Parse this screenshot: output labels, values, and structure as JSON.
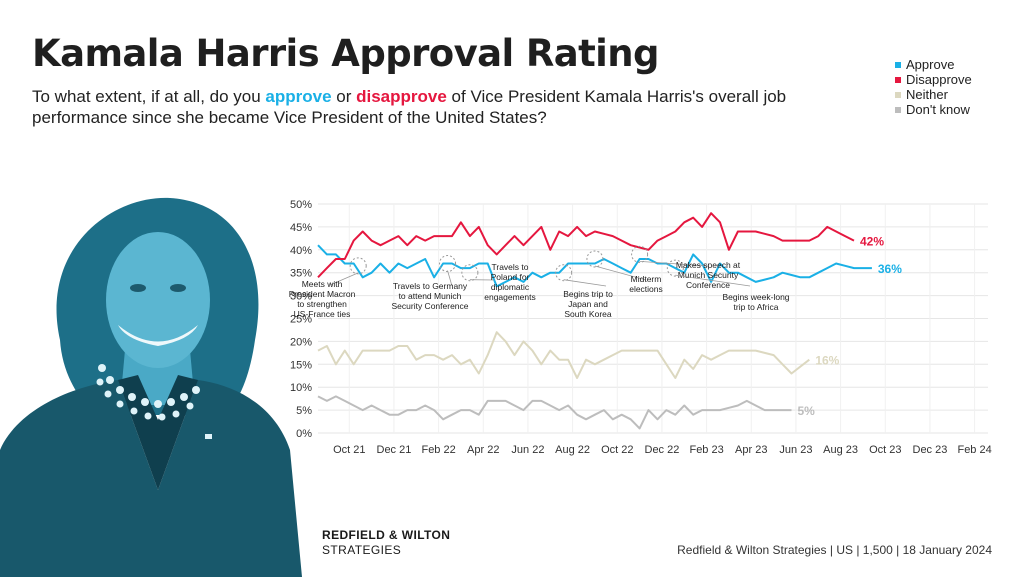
{
  "header": {
    "title": "Kamala Harris Approval Rating",
    "subtitle_pre": "To what extent, if at all, do you ",
    "subtitle_approve": "approve",
    "subtitle_mid": " or ",
    "subtitle_disapprove": "disapprove",
    "subtitle_post": " of Vice President Kamala Harris's overall job performance since she became Vice President of the United States?"
  },
  "legend": [
    {
      "label": "Approve",
      "color": "#1ab0e6"
    },
    {
      "label": "Disapprove",
      "color": "#e5173f"
    },
    {
      "label": "Neither",
      "color": "#dcd8c0"
    },
    {
      "label": "Don't know",
      "color": "#bdbdbd"
    }
  ],
  "footer": {
    "brand_line1": "REDFIELD & WILTON",
    "brand_line2": "STRATEGIES",
    "source": "Redfield & Wilton Strategies | US | 1,500 | 18 January 2024"
  },
  "photo": {
    "subject": "portrait-photo",
    "tint": "#2a7f99"
  },
  "chart_data": {
    "type": "line",
    "ylim": [
      0,
      50
    ],
    "y_ticks": [
      {
        "v": 0,
        "label": "0%"
      },
      {
        "v": 5,
        "label": "5%"
      },
      {
        "v": 10,
        "label": "10%"
      },
      {
        "v": 15,
        "label": "15%"
      },
      {
        "v": 20,
        "label": "20%"
      },
      {
        "v": 25,
        "label": "25%"
      },
      {
        "v": 30,
        "label": "30%"
      },
      {
        "v": 35,
        "label": "35%"
      },
      {
        "v": 40,
        "label": "40%"
      },
      {
        "v": 45,
        "label": "45%"
      },
      {
        "v": 50,
        "label": "50%"
      }
    ],
    "x_ticks": [
      {
        "pos": 3.5,
        "label": "Oct 21"
      },
      {
        "pos": 8.5,
        "label": "Dec 21"
      },
      {
        "pos": 13.5,
        "label": "Feb 22"
      },
      {
        "pos": 18.5,
        "label": "Apr 22"
      },
      {
        "pos": 23.5,
        "label": "Jun 22"
      },
      {
        "pos": 28.5,
        "label": "Aug 22"
      },
      {
        "pos": 33.5,
        "label": "Oct 22"
      },
      {
        "pos": 38.5,
        "label": "Dec 22"
      },
      {
        "pos": 43.5,
        "label": "Feb 23"
      },
      {
        "pos": 48.5,
        "label": "Apr 23"
      },
      {
        "pos": 53.5,
        "label": "Jun 23"
      },
      {
        "pos": 58.5,
        "label": "Aug 23"
      },
      {
        "pos": 63.5,
        "label": "Oct 23"
      },
      {
        "pos": 68.5,
        "label": "Dec 23"
      },
      {
        "pos": 73.5,
        "label": "Feb 24"
      }
    ],
    "x_range": [
      0,
      75
    ],
    "series": [
      {
        "name": "Approve",
        "color": "#1ab0e6",
        "end_label": "36%",
        "points": [
          [
            0,
            41
          ],
          [
            1,
            39
          ],
          [
            2,
            39
          ],
          [
            3,
            37
          ],
          [
            4,
            37
          ],
          [
            5,
            34
          ],
          [
            6,
            35
          ],
          [
            7,
            37
          ],
          [
            8,
            35
          ],
          [
            9,
            37
          ],
          [
            10,
            36
          ],
          [
            11,
            37
          ],
          [
            12,
            38
          ],
          [
            13,
            34
          ],
          [
            14,
            37
          ],
          [
            15,
            37
          ],
          [
            16,
            36
          ],
          [
            17,
            36
          ],
          [
            18,
            37
          ],
          [
            19,
            37
          ],
          [
            20,
            32
          ],
          [
            21,
            33
          ],
          [
            22,
            34
          ],
          [
            23,
            33
          ],
          [
            24,
            35
          ],
          [
            25,
            34
          ],
          [
            26,
            35
          ],
          [
            27,
            35
          ],
          [
            28,
            37
          ],
          [
            29,
            37
          ],
          [
            30,
            37
          ],
          [
            31,
            37
          ],
          [
            32,
            38
          ],
          [
            33,
            37
          ],
          [
            34,
            36
          ],
          [
            35,
            35
          ],
          [
            36,
            38
          ],
          [
            37,
            38
          ],
          [
            38,
            37
          ],
          [
            39,
            37
          ],
          [
            40,
            36
          ],
          [
            41,
            35
          ],
          [
            42,
            39
          ],
          [
            43,
            37
          ],
          [
            44,
            33
          ],
          [
            45,
            37
          ],
          [
            46,
            35
          ],
          [
            47,
            35
          ],
          [
            48,
            34
          ],
          [
            49,
            33
          ],
          [
            50,
            33.5
          ],
          [
            51,
            34
          ],
          [
            52,
            35
          ],
          [
            53,
            34.5
          ],
          [
            54,
            34
          ],
          [
            55,
            34
          ],
          [
            56,
            35
          ],
          [
            57,
            36
          ],
          [
            58,
            37
          ],
          [
            59,
            36.5
          ],
          [
            60,
            36
          ],
          [
            61,
            36
          ],
          [
            62,
            36
          ]
        ]
      },
      {
        "name": "Disapprove",
        "color": "#e5173f",
        "end_label": "42%",
        "points": [
          [
            0,
            34
          ],
          [
            1,
            36
          ],
          [
            2,
            38
          ],
          [
            3,
            38
          ],
          [
            4,
            42
          ],
          [
            5,
            44
          ],
          [
            6,
            42
          ],
          [
            7,
            41
          ],
          [
            8,
            42
          ],
          [
            9,
            43
          ],
          [
            10,
            41
          ],
          [
            11,
            43
          ],
          [
            12,
            42
          ],
          [
            13,
            43
          ],
          [
            14,
            43
          ],
          [
            15,
            43
          ],
          [
            16,
            46
          ],
          [
            17,
            43
          ],
          [
            18,
            45
          ],
          [
            19,
            41
          ],
          [
            20,
            39
          ],
          [
            21,
            41
          ],
          [
            22,
            43
          ],
          [
            23,
            41
          ],
          [
            24,
            43
          ],
          [
            25,
            45
          ],
          [
            26,
            40
          ],
          [
            27,
            44
          ],
          [
            28,
            43
          ],
          [
            29,
            45
          ],
          [
            30,
            43
          ],
          [
            31,
            44
          ],
          [
            32,
            43.5
          ],
          [
            33,
            43
          ],
          [
            34,
            42
          ],
          [
            35,
            41
          ],
          [
            36,
            40.5
          ],
          [
            37,
            40
          ],
          [
            38,
            42
          ],
          [
            39,
            43
          ],
          [
            40,
            44
          ],
          [
            41,
            46
          ],
          [
            42,
            47
          ],
          [
            43,
            45
          ],
          [
            44,
            48
          ],
          [
            45,
            46
          ],
          [
            46,
            40
          ],
          [
            47,
            44
          ],
          [
            48,
            44
          ],
          [
            49,
            44
          ],
          [
            50,
            43.5
          ],
          [
            51,
            43
          ],
          [
            52,
            42
          ],
          [
            53,
            42
          ],
          [
            54,
            42
          ],
          [
            55,
            42
          ],
          [
            56,
            43
          ],
          [
            57,
            45
          ],
          [
            58,
            44
          ],
          [
            59,
            43
          ],
          [
            60,
            42
          ]
        ]
      },
      {
        "name": "Neither",
        "color": "#dcd8c0",
        "end_label": "16%",
        "points": [
          [
            0,
            18
          ],
          [
            1,
            19
          ],
          [
            2,
            15
          ],
          [
            3,
            18
          ],
          [
            4,
            15
          ],
          [
            5,
            18
          ],
          [
            6,
            18
          ],
          [
            7,
            18
          ],
          [
            8,
            18
          ],
          [
            9,
            19
          ],
          [
            10,
            19
          ],
          [
            11,
            16
          ],
          [
            12,
            17
          ],
          [
            13,
            17
          ],
          [
            14,
            16
          ],
          [
            15,
            17
          ],
          [
            16,
            15
          ],
          [
            17,
            16
          ],
          [
            18,
            13
          ],
          [
            19,
            17
          ],
          [
            20,
            22
          ],
          [
            21,
            20
          ],
          [
            22,
            17
          ],
          [
            23,
            20
          ],
          [
            24,
            18
          ],
          [
            25,
            15
          ],
          [
            26,
            18
          ],
          [
            27,
            16
          ],
          [
            28,
            16
          ],
          [
            29,
            12
          ],
          [
            30,
            16
          ],
          [
            31,
            15
          ],
          [
            32,
            16
          ],
          [
            33,
            17
          ],
          [
            34,
            18
          ],
          [
            35,
            18
          ],
          [
            36,
            18
          ],
          [
            37,
            18
          ],
          [
            38,
            18
          ],
          [
            39,
            15
          ],
          [
            40,
            12
          ],
          [
            41,
            16
          ],
          [
            42,
            14
          ],
          [
            43,
            17
          ],
          [
            44,
            16
          ],
          [
            45,
            17
          ],
          [
            46,
            18
          ],
          [
            47,
            18
          ],
          [
            48,
            18
          ],
          [
            49,
            18
          ],
          [
            50,
            17.5
          ],
          [
            51,
            17
          ],
          [
            52,
            15
          ],
          [
            53,
            13
          ],
          [
            54,
            14.5
          ],
          [
            55,
            16
          ]
        ]
      },
      {
        "name": "Don't know",
        "color": "#bdbdbd",
        "end_label": "5%",
        "points": [
          [
            0,
            8
          ],
          [
            1,
            7
          ],
          [
            2,
            8
          ],
          [
            3,
            7
          ],
          [
            4,
            6
          ],
          [
            5,
            5
          ],
          [
            6,
            6
          ],
          [
            7,
            5
          ],
          [
            8,
            4
          ],
          [
            9,
            4
          ],
          [
            10,
            5
          ],
          [
            11,
            5
          ],
          [
            12,
            6
          ],
          [
            13,
            5
          ],
          [
            14,
            3
          ],
          [
            15,
            4
          ],
          [
            16,
            5
          ],
          [
            17,
            5
          ],
          [
            18,
            4
          ],
          [
            19,
            7
          ],
          [
            20,
            7
          ],
          [
            21,
            7
          ],
          [
            22,
            6
          ],
          [
            23,
            5
          ],
          [
            24,
            7
          ],
          [
            25,
            7
          ],
          [
            26,
            6
          ],
          [
            27,
            5
          ],
          [
            28,
            6
          ],
          [
            29,
            4
          ],
          [
            30,
            3
          ],
          [
            31,
            4
          ],
          [
            32,
            5
          ],
          [
            33,
            3
          ],
          [
            34,
            4
          ],
          [
            35,
            3
          ],
          [
            36,
            1
          ],
          [
            37,
            5
          ],
          [
            38,
            3
          ],
          [
            39,
            5
          ],
          [
            40,
            4
          ],
          [
            41,
            6
          ],
          [
            42,
            4
          ],
          [
            43,
            5
          ],
          [
            44,
            5
          ],
          [
            45,
            5
          ],
          [
            46,
            5.5
          ],
          [
            47,
            6
          ],
          [
            48,
            7
          ],
          [
            49,
            6
          ],
          [
            50,
            5
          ],
          [
            51,
            5
          ],
          [
            52,
            5
          ],
          [
            53,
            5
          ]
        ]
      }
    ],
    "annotations": [
      {
        "text": [
          "Meets with",
          "President Macron",
          "to strengthen",
          "US-France ties"
        ],
        "at": [
          4.5,
          36.5
        ]
      },
      {
        "text": [
          "Travels to Germany",
          "to attend Munich",
          "Security Conference"
        ],
        "at": [
          14.5,
          37
        ]
      },
      {
        "text": [
          "Travels to",
          "Poland for",
          "diplomatic",
          "engagements"
        ],
        "at": [
          17,
          35
        ]
      },
      {
        "text": [
          "Begins trip to",
          "Japan and",
          "South Korea"
        ],
        "at": [
          27.5,
          35
        ]
      },
      {
        "text": [
          "Midterm",
          "elections"
        ],
        "at": [
          31,
          38
        ]
      },
      {
        "text": [
          "Makes speech at",
          "Munich Security",
          "Conference"
        ],
        "at": [
          36,
          39
        ]
      },
      {
        "text": [
          "Begins week-long",
          "trip to Africa"
        ],
        "at": [
          40,
          36
        ]
      }
    ]
  }
}
